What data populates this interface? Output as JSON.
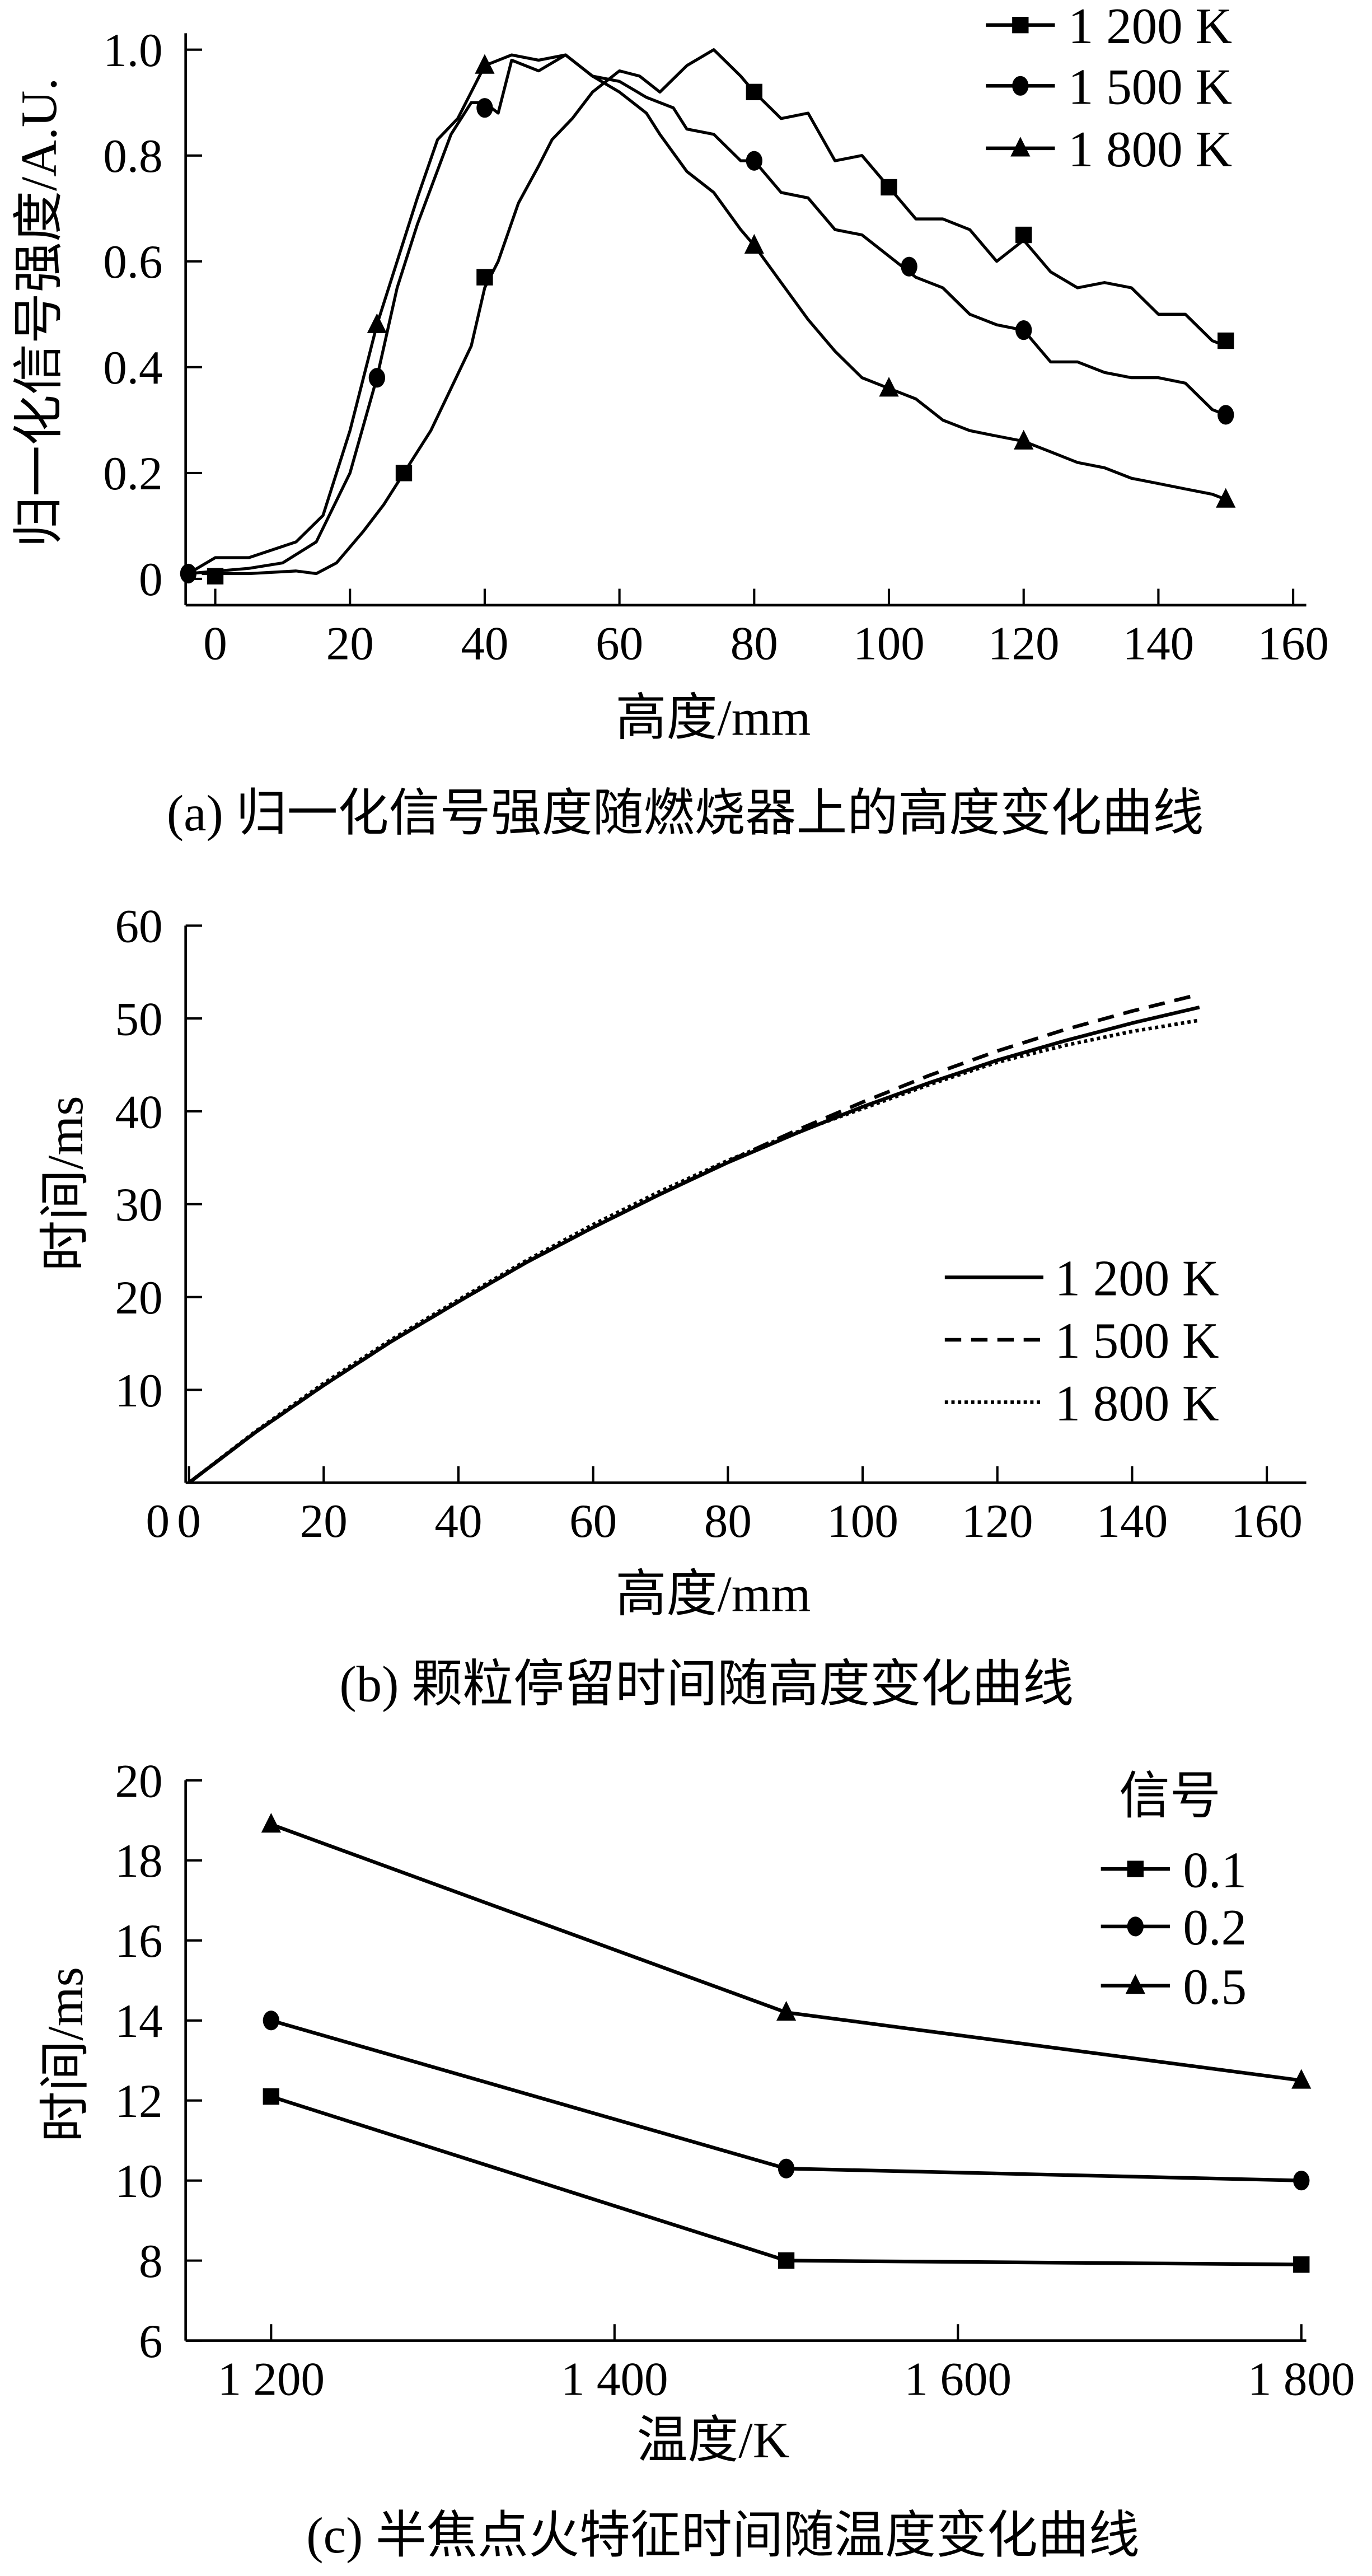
{
  "chart_data": [
    {
      "type": "line",
      "caption": "(a) 归一化信号强度随燃烧器上的高度变化曲线",
      "xlabel": "高度/mm",
      "ylabel": "归一化信号强度/A.U.",
      "xlim": [
        -4.4,
        161
      ],
      "ylim": [
        0,
        1.0
      ],
      "xticks": [
        0,
        20,
        40,
        60,
        80,
        100,
        120,
        140,
        160
      ],
      "yticks": [
        0,
        0.2,
        0.4,
        0.6,
        0.8,
        1.0
      ],
      "ytick_labels": [
        "0",
        "0.2",
        "0.4",
        "0.6",
        "0.8",
        "1.0"
      ],
      "legend": "top-right",
      "series": [
        {
          "name": "1 200 K",
          "marker": "square",
          "x": [
            -2,
            5,
            12,
            15,
            18,
            22,
            25,
            28,
            32,
            35,
            38,
            40,
            42,
            45,
            48,
            50,
            53,
            56,
            60,
            63,
            66,
            70,
            74,
            78,
            80,
            84,
            88,
            92,
            96,
            100,
            104,
            108,
            112,
            116,
            120,
            124,
            128,
            132,
            136,
            140,
            144,
            148,
            150
          ],
          "y": [
            0.01,
            0.01,
            0.015,
            0.01,
            0.03,
            0.09,
            0.14,
            0.2,
            0.28,
            0.36,
            0.44,
            0.55,
            0.6,
            0.71,
            0.78,
            0.83,
            0.87,
            0.92,
            0.96,
            0.95,
            0.92,
            0.97,
            1.0,
            0.95,
            0.92,
            0.87,
            0.88,
            0.79,
            0.8,
            0.74,
            0.68,
            0.68,
            0.66,
            0.6,
            0.64,
            0.58,
            0.55,
            0.56,
            0.55,
            0.5,
            0.5,
            0.45,
            0.44
          ],
          "markers_x": [
            0,
            28,
            40,
            80,
            100,
            120,
            150
          ],
          "markers_y": [
            0.005,
            0.2,
            0.57,
            0.92,
            0.74,
            0.65,
            0.45
          ]
        },
        {
          "name": "1 500 K",
          "marker": "circle",
          "x": [
            -4,
            5,
            10,
            15,
            20,
            24,
            27,
            30,
            35,
            38,
            40,
            42,
            44,
            48,
            52,
            56,
            60,
            64,
            68,
            70,
            74,
            78,
            80,
            84,
            88,
            92,
            96,
            100,
            104,
            108,
            112,
            116,
            120,
            124,
            128,
            132,
            136,
            140,
            144,
            148,
            150
          ],
          "y": [
            0.01,
            0.02,
            0.03,
            0.07,
            0.2,
            0.38,
            0.55,
            0.67,
            0.84,
            0.9,
            0.9,
            0.88,
            0.98,
            0.96,
            0.99,
            0.95,
            0.94,
            0.91,
            0.89,
            0.85,
            0.84,
            0.79,
            0.79,
            0.73,
            0.72,
            0.66,
            0.65,
            0.61,
            0.57,
            0.55,
            0.5,
            0.48,
            0.47,
            0.41,
            0.41,
            0.39,
            0.38,
            0.38,
            0.37,
            0.32,
            0.31
          ],
          "markers_x": [
            -4,
            24,
            40,
            80,
            103,
            120,
            150
          ],
          "markers_y": [
            0.01,
            0.38,
            0.89,
            0.79,
            0.59,
            0.47,
            0.31
          ]
        },
        {
          "name": "1 800 K",
          "marker": "triangle",
          "x": [
            -4,
            0,
            5,
            12,
            16,
            20,
            24,
            27,
            30,
            33,
            36,
            40,
            44,
            48,
            52,
            56,
            60,
            64,
            66,
            70,
            74,
            78,
            80,
            84,
            88,
            92,
            96,
            100,
            104,
            108,
            112,
            116,
            120,
            124,
            128,
            132,
            136,
            140,
            144,
            148,
            150
          ],
          "y": [
            0.01,
            0.04,
            0.04,
            0.07,
            0.12,
            0.28,
            0.48,
            0.6,
            0.72,
            0.83,
            0.87,
            0.97,
            0.99,
            0.98,
            0.99,
            0.95,
            0.92,
            0.88,
            0.84,
            0.77,
            0.73,
            0.66,
            0.63,
            0.56,
            0.49,
            0.43,
            0.38,
            0.36,
            0.34,
            0.3,
            0.28,
            0.27,
            0.26,
            0.24,
            0.22,
            0.21,
            0.19,
            0.18,
            0.17,
            0.16,
            0.15
          ],
          "markers_x": [
            24,
            40,
            80,
            100,
            120,
            150
          ],
          "markers_y": [
            0.48,
            0.97,
            0.63,
            0.36,
            0.26,
            0.15
          ]
        }
      ]
    },
    {
      "type": "line",
      "caption": "(b) 颗粒停留时间随高度变化曲线",
      "xlabel": "高度/mm",
      "ylabel": "时间/ms",
      "xlim": [
        0,
        160
      ],
      "ylim": [
        0,
        60
      ],
      "xticks": [
        0,
        20,
        40,
        60,
        80,
        100,
        120,
        140,
        160
      ],
      "yticks": [
        10,
        20,
        30,
        40,
        50,
        60
      ],
      "legend": "right",
      "series": [
        {
          "name": "1 200 K",
          "style": "solid",
          "x": [
            0,
            10,
            20,
            30,
            40,
            50,
            60,
            70,
            80,
            90,
            100,
            110,
            120,
            130,
            140,
            150
          ],
          "y": [
            0,
            5.5,
            10.5,
            15.2,
            19.5,
            23.7,
            27.5,
            31.1,
            34.5,
            37.6,
            40.5,
            43.1,
            45.5,
            47.6,
            49.5,
            51.2
          ]
        },
        {
          "name": "1 500 K",
          "style": "dashed",
          "x": [
            0,
            10,
            20,
            30,
            40,
            50,
            60,
            70,
            80,
            90,
            100,
            110,
            120,
            130,
            140,
            150
          ],
          "y": [
            0,
            5.5,
            10.5,
            15.2,
            19.5,
            23.7,
            27.5,
            31.1,
            34.6,
            37.9,
            41.0,
            43.9,
            46.5,
            48.8,
            50.8,
            52.6
          ]
        },
        {
          "name": "1 800 K",
          "style": "dotted",
          "x": [
            0,
            10,
            20,
            30,
            40,
            50,
            60,
            70,
            80,
            90,
            100,
            110,
            120,
            130,
            140,
            150
          ],
          "y": [
            0,
            5.6,
            10.7,
            15.4,
            19.7,
            23.9,
            27.8,
            31.4,
            34.7,
            37.7,
            40.3,
            42.9,
            45.3,
            47.1,
            48.6,
            49.8
          ]
        }
      ]
    },
    {
      "type": "line",
      "caption": "(c) 半焦点火特征时间随温度变化曲线",
      "xlabel": "温度/K",
      "ylabel": "时间/ms",
      "xlim": [
        1150,
        1810
      ],
      "ylim": [
        6,
        20
      ],
      "xticks": [
        1200,
        1400,
        1600,
        1800
      ],
      "xtick_labels": [
        "1 200",
        "1 400",
        "1 600",
        "1 800"
      ],
      "yticks": [
        6,
        8,
        10,
        12,
        14,
        16,
        18,
        20
      ],
      "legend_title": "信号",
      "legend": "top-right",
      "series": [
        {
          "name": "0.1",
          "marker": "square",
          "x": [
            1200,
            1500,
            1800
          ],
          "y": [
            12.1,
            8.0,
            7.9
          ]
        },
        {
          "name": "0.2",
          "marker": "circle",
          "x": [
            1200,
            1500,
            1800
          ],
          "y": [
            14.0,
            10.3,
            10.0
          ]
        },
        {
          "name": "0.5",
          "marker": "triangle",
          "x": [
            1200,
            1500,
            1800
          ],
          "y": [
            18.9,
            14.2,
            12.5
          ]
        }
      ]
    }
  ]
}
